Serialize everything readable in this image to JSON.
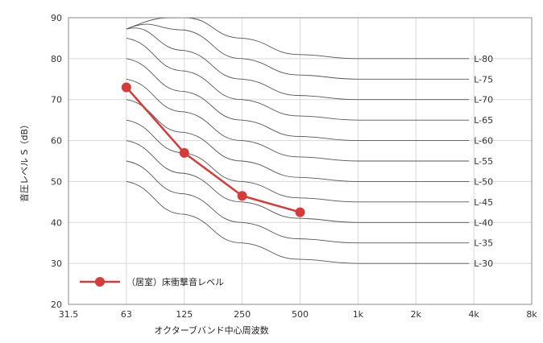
{
  "chart_data": {
    "type": "line",
    "xlabel": "オクターブバンド中心周波数",
    "ylabel": "音圧レベル S（dB）",
    "x_ticks": [
      "31.5",
      "63",
      "125",
      "250",
      "500",
      "1k",
      "2k",
      "4k",
      "8k"
    ],
    "y_ticks": [
      20,
      30,
      40,
      50,
      60,
      70,
      80,
      90
    ],
    "ylim": [
      20,
      90
    ],
    "grid": true,
    "legend_position": "bottom-left",
    "colors": {
      "series": "#d63a3a",
      "curves": "#555555",
      "grid": "#d8d8d8",
      "frame": "#888888"
    },
    "series": [
      {
        "name": "（居室）床衝撃音レベル",
        "x": [
          "63",
          "125",
          "250",
          "500"
        ],
        "values": [
          73,
          57,
          46.5,
          42.5
        ]
      }
    ],
    "reference_curves": {
      "x": [
        "63",
        "125",
        "250",
        "500",
        "1k",
        "2k"
      ],
      "offsets": [
        -20,
        -12,
        -5,
        -1,
        0,
        0
      ],
      "labels": [
        "L-30",
        "L-35",
        "L-40",
        "L-45",
        "L-50",
        "L-55",
        "L-60",
        "L-65",
        "L-70",
        "L-75",
        "L-80"
      ],
      "levels": [
        30,
        35,
        40,
        45,
        50,
        55,
        60,
        65,
        70,
        75,
        80
      ]
    }
  }
}
